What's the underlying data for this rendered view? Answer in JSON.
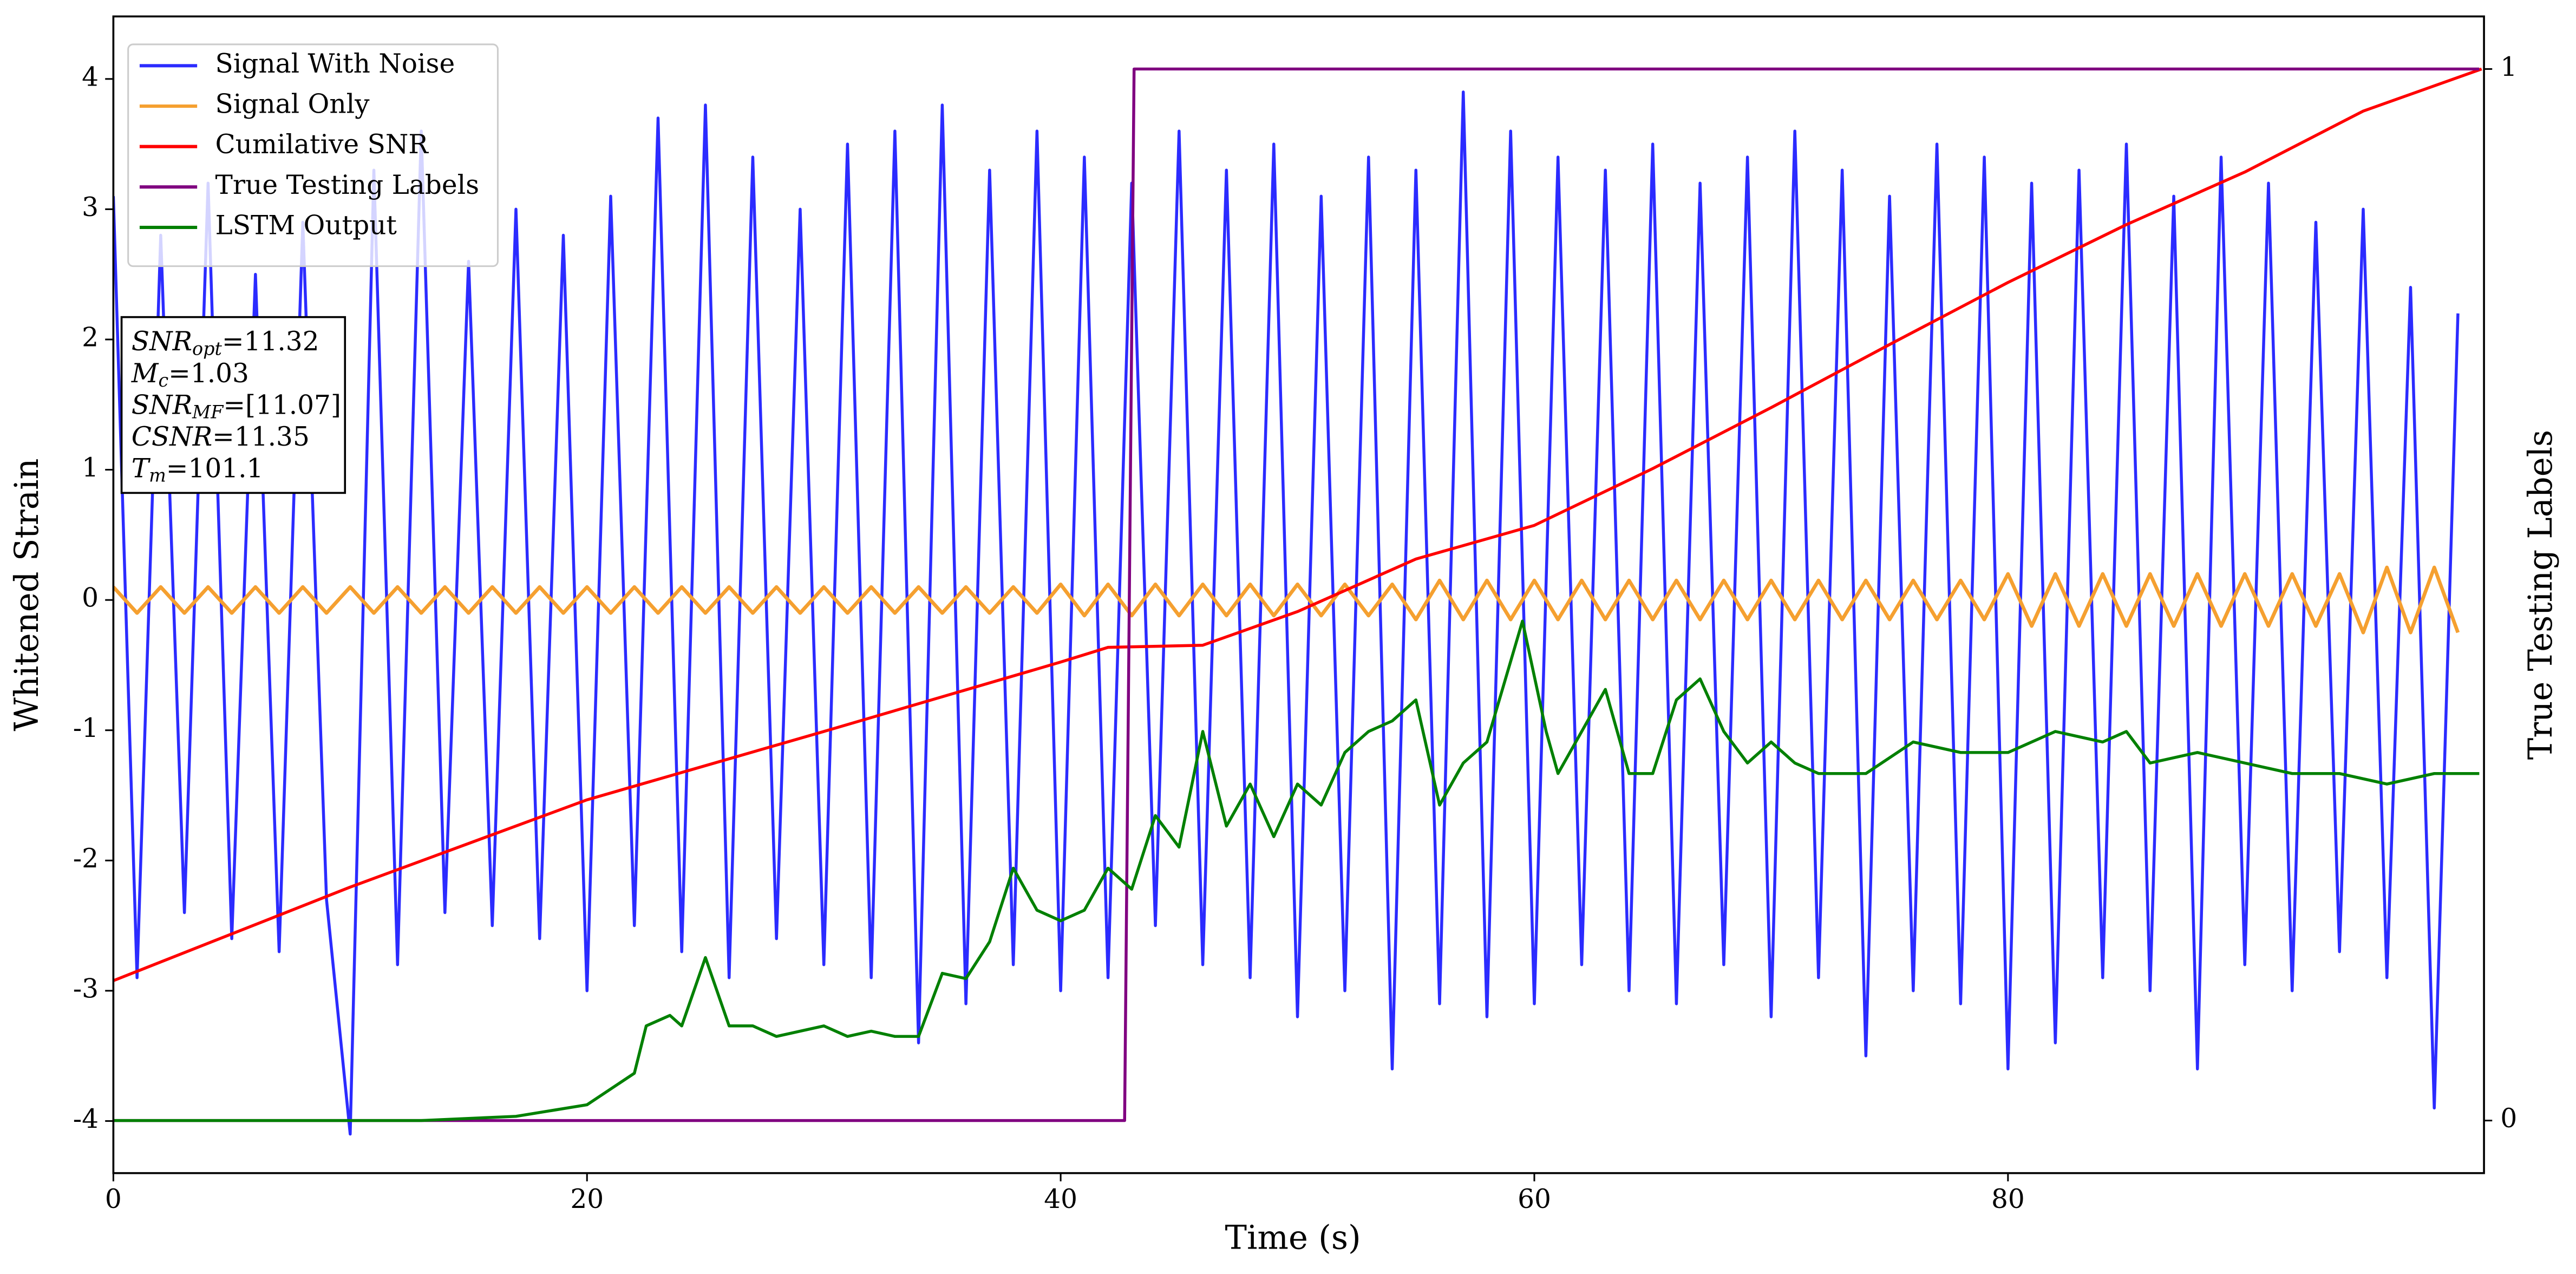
{
  "chart_data": {
    "type": "line",
    "xlabel": "Time (s)",
    "ylabel": "Whitened Strain",
    "y2label": "True Testing Labels",
    "xlim": [
      0,
      100.1
    ],
    "ylim": [
      -4.4,
      4.48
    ],
    "y2lim": [
      -0.05,
      1.05
    ],
    "xticks": [
      0,
      20,
      40,
      60,
      80
    ],
    "yticks": [
      -4,
      -3,
      -2,
      -1,
      0,
      1,
      2,
      3,
      4
    ],
    "y2ticks": [
      0,
      1
    ],
    "legend": "upper left",
    "annotations": [
      {
        "label": "SNR",
        "sub": "opt",
        "text": "=11.32"
      },
      {
        "label": "M",
        "sub": "c",
        "text": "=1.03"
      },
      {
        "label": "SNR",
        "sub": "MF",
        "text": "=[11.07]"
      },
      {
        "label": "CSNR",
        "text": "=11.35"
      },
      {
        "label": "T",
        "sub": "m",
        "text": "=101.1"
      }
    ],
    "series": [
      {
        "name": "Signal With Noise",
        "color": "#2b2bff",
        "x": [
          0,
          1,
          2,
          3,
          4,
          5,
          6,
          7,
          8,
          9,
          10,
          11,
          12,
          13,
          14,
          15,
          16,
          17,
          18,
          19,
          20,
          21,
          22,
          23,
          24,
          25,
          26,
          27,
          28,
          29,
          30,
          31,
          32,
          33,
          34,
          35,
          36,
          37,
          38,
          39,
          40,
          41,
          42,
          43,
          44,
          45,
          46,
          47,
          48,
          49,
          50,
          51,
          52,
          53,
          54,
          55,
          56,
          57,
          58,
          59,
          60,
          61,
          62,
          63,
          64,
          65,
          66,
          67,
          68,
          69,
          70,
          71,
          72,
          73,
          74,
          75,
          76,
          77,
          78,
          79,
          80,
          81,
          82,
          83,
          84,
          85,
          86,
          87,
          88,
          89,
          90,
          91,
          92,
          93,
          94,
          95,
          96,
          97,
          98,
          99
        ],
        "values": [
          3.1,
          -2.9,
          2.8,
          -2.4,
          3.2,
          -2.6,
          2.5,
          -2.7,
          2.9,
          -2.3,
          -4.1,
          3.3,
          -2.8,
          3.6,
          -2.4,
          2.6,
          -2.5,
          3.0,
          -2.6,
          2.8,
          -3.0,
          3.1,
          -2.5,
          3.7,
          -2.7,
          3.8,
          -2.9,
          3.4,
          -2.6,
          3.0,
          -2.8,
          3.5,
          -2.9,
          3.6,
          -3.4,
          3.8,
          -3.1,
          3.3,
          -2.8,
          3.6,
          -3.0,
          3.4,
          -2.9,
          3.2,
          -2.5,
          3.6,
          -2.8,
          3.3,
          -2.9,
          3.5,
          -3.2,
          3.1,
          -3.0,
          3.4,
          -3.6,
          3.3,
          -3.1,
          3.9,
          -3.2,
          3.6,
          -3.1,
          3.4,
          -2.8,
          3.3,
          -3.0,
          3.5,
          -3.1,
          3.2,
          -2.8,
          3.4,
          -3.2,
          3.6,
          -2.9,
          3.3,
          -3.5,
          3.1,
          -3.0,
          3.5,
          -3.1,
          3.4,
          -3.6,
          3.2,
          -3.4,
          3.3,
          -2.9,
          3.5,
          -3.0,
          3.1,
          -3.6,
          3.4,
          -2.8,
          3.2,
          -3.0,
          2.9,
          -2.7,
          3.0,
          -2.9,
          2.4,
          -3.9,
          2.2
        ]
      },
      {
        "name": "Signal Only",
        "color": "#f5a030",
        "x": [
          0,
          1,
          2,
          3,
          4,
          5,
          6,
          7,
          8,
          9,
          10,
          11,
          12,
          13,
          14,
          15,
          16,
          17,
          18,
          19,
          20,
          21,
          22,
          23,
          24,
          25,
          26,
          27,
          28,
          29,
          30,
          31,
          32,
          33,
          34,
          35,
          36,
          37,
          38,
          39,
          40,
          41,
          42,
          43,
          44,
          45,
          46,
          47,
          48,
          49,
          50,
          51,
          52,
          53,
          54,
          55,
          56,
          57,
          58,
          59,
          60,
          61,
          62,
          63,
          64,
          65,
          66,
          67,
          68,
          69,
          70,
          71,
          72,
          73,
          74,
          75,
          76,
          77,
          78,
          79,
          80,
          81,
          82,
          83,
          84,
          85,
          86,
          87,
          88,
          89,
          90,
          91,
          92,
          93,
          94,
          95,
          96,
          97,
          98,
          99
        ],
        "values": [
          0.1,
          -0.1,
          0.1,
          -0.1,
          0.1,
          -0.1,
          0.1,
          -0.1,
          0.1,
          -0.1,
          0.1,
          -0.1,
          0.1,
          -0.1,
          0.1,
          -0.1,
          0.1,
          -0.1,
          0.1,
          -0.1,
          0.1,
          -0.1,
          0.1,
          -0.1,
          0.1,
          -0.1,
          0.1,
          -0.1,
          0.1,
          -0.1,
          0.1,
          -0.1,
          0.1,
          -0.1,
          0.1,
          -0.1,
          0.1,
          -0.1,
          0.1,
          -0.1,
          0.12,
          -0.12,
          0.12,
          -0.12,
          0.12,
          -0.12,
          0.12,
          -0.12,
          0.12,
          -0.12,
          0.12,
          -0.12,
          0.12,
          -0.12,
          0.12,
          -0.15,
          0.15,
          -0.15,
          0.15,
          -0.15,
          0.15,
          -0.15,
          0.15,
          -0.15,
          0.15,
          -0.15,
          0.15,
          -0.15,
          0.15,
          -0.15,
          0.15,
          -0.15,
          0.15,
          -0.15,
          0.15,
          -0.15,
          0.15,
          -0.15,
          0.15,
          -0.15,
          0.2,
          -0.2,
          0.2,
          -0.2,
          0.2,
          -0.2,
          0.2,
          -0.2,
          0.2,
          -0.2,
          0.2,
          -0.2,
          0.2,
          -0.2,
          0.2,
          -0.25,
          0.25,
          -0.25,
          0.25,
          -0.25
        ]
      },
      {
        "name": "Cumilative SNR",
        "color": "red",
        "axis": "y2",
        "x": [
          0,
          10,
          20,
          30,
          40,
          42,
          46,
          50,
          55,
          60,
          65,
          70,
          75,
          80,
          85,
          90,
          95,
          100
        ],
        "values": [
          0.133,
          0.222,
          0.305,
          0.37,
          0.436,
          0.45,
          0.452,
          0.484,
          0.534,
          0.566,
          0.62,
          0.678,
          0.738,
          0.797,
          0.852,
          0.902,
          0.96,
          1.0
        ]
      },
      {
        "name": "True Testing Labels",
        "color": "purple",
        "axis": "y2",
        "x": [
          0,
          42.7,
          43.1,
          99.9
        ],
        "values": [
          0,
          0,
          1,
          1
        ]
      },
      {
        "name": "LSTM Output",
        "color": "green",
        "axis": "y2",
        "x": [
          0,
          13,
          17,
          20,
          22,
          22.5,
          23.5,
          24,
          25,
          26,
          27,
          28,
          30,
          31,
          32,
          33,
          34,
          35,
          36,
          37,
          38,
          39,
          40,
          41,
          42,
          43,
          44,
          45,
          46,
          47,
          48,
          49,
          50,
          51,
          52,
          53,
          54,
          55,
          56,
          57,
          58,
          59.5,
          60.5,
          61,
          62,
          63,
          64,
          65,
          66,
          67,
          68,
          69,
          70,
          71,
          72,
          74,
          76,
          78,
          80,
          82,
          84,
          85,
          86,
          88,
          90,
          92,
          94,
          96,
          98,
          99.9
        ],
        "values": [
          0,
          0,
          0.004,
          0.015,
          0.045,
          0.09,
          0.1,
          0.09,
          0.155,
          0.09,
          0.09,
          0.08,
          0.09,
          0.08,
          0.085,
          0.08,
          0.08,
          0.14,
          0.135,
          0.17,
          0.24,
          0.2,
          0.19,
          0.2,
          0.24,
          0.22,
          0.29,
          0.26,
          0.37,
          0.28,
          0.32,
          0.27,
          0.32,
          0.3,
          0.35,
          0.37,
          0.38,
          0.4,
          0.3,
          0.34,
          0.36,
          0.475,
          0.37,
          0.33,
          0.37,
          0.41,
          0.33,
          0.33,
          0.4,
          0.42,
          0.37,
          0.34,
          0.36,
          0.34,
          0.33,
          0.33,
          0.36,
          0.35,
          0.35,
          0.37,
          0.36,
          0.37,
          0.34,
          0.35,
          0.34,
          0.33,
          0.33,
          0.32,
          0.33,
          0.33
        ]
      }
    ]
  }
}
